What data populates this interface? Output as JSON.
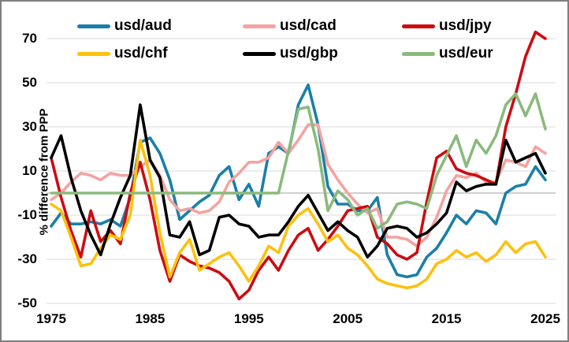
{
  "chart": {
    "y_axis_title": "% difference from PPP",
    "y_ticks": [
      70,
      50,
      30,
      10,
      -10,
      -30,
      -50
    ],
    "x_ticks": [
      1975,
      1985,
      1995,
      2005,
      2015,
      2025
    ],
    "colors": {
      "gridline": "#d9d9d9",
      "zero_line": "#bfbfbf",
      "frame_border": "#7f7f7f",
      "background": "#ffffff"
    }
  },
  "chart_data": {
    "type": "line",
    "title": "",
    "xlabel": "",
    "ylabel": "% difference from PPP",
    "x_range": [
      1975,
      2025
    ],
    "ylim": [
      -50,
      70
    ],
    "grid": "horizontal-only",
    "legend_position": "top",
    "x": [
      1975,
      1976,
      1977,
      1978,
      1979,
      1980,
      1981,
      1982,
      1983,
      1984,
      1985,
      1986,
      1987,
      1988,
      1989,
      1990,
      1991,
      1992,
      1993,
      1994,
      1995,
      1996,
      1997,
      1998,
      1999,
      2000,
      2001,
      2002,
      2003,
      2004,
      2005,
      2006,
      2007,
      2008,
      2009,
      2010,
      2011,
      2012,
      2013,
      2014,
      2015,
      2016,
      2017,
      2018,
      2019,
      2020,
      2021,
      2022,
      2023,
      2024,
      2025
    ],
    "series": [
      {
        "name": "usd/aud",
        "color": "#1b7fa8",
        "values": [
          -15,
          -9,
          -14,
          -14,
          -13,
          -14,
          -12,
          -15,
          -2,
          23,
          25,
          18,
          6,
          -12,
          -8,
          -4,
          -1,
          8,
          12,
          -3,
          4,
          -6,
          18,
          21,
          18,
          40,
          49,
          31,
          3,
          -5,
          -5,
          -8,
          -8,
          -2,
          -28,
          -37,
          -38,
          -37,
          -29,
          -25,
          -18,
          -10,
          -14,
          -8,
          -9,
          -14,
          0,
          3,
          4,
          12,
          6
        ]
      },
      {
        "name": "usd/cad",
        "color": "#f4a3a0",
        "values": [
          -3,
          0,
          5,
          9,
          8,
          6,
          9,
          8,
          8,
          12,
          15,
          8,
          -3,
          -8,
          -7,
          -9,
          -8,
          -4,
          5,
          9,
          14,
          14,
          16,
          23,
          18,
          24,
          31,
          31,
          13,
          6,
          0,
          -5,
          -9,
          -7,
          -20,
          -20,
          -21,
          -24,
          -20,
          -11,
          1,
          8,
          7,
          9,
          5,
          5,
          15,
          14,
          12,
          21,
          18
        ]
      },
      {
        "name": "usd/jpy",
        "color": "#cc0c11",
        "values": [
          16,
          -2,
          -17,
          -29,
          -8,
          -22,
          -17,
          -23,
          0,
          14,
          -3,
          -26,
          -40,
          -28,
          -31,
          -33,
          -34,
          -36,
          -40,
          -48,
          -44,
          -35,
          -29,
          -35,
          -26,
          -19,
          -16,
          -26,
          -21,
          -15,
          -8,
          -7,
          -6,
          -20,
          -23,
          -28,
          -30,
          -27,
          -4,
          16,
          19,
          11,
          9,
          8,
          6,
          4,
          30,
          45,
          62,
          73,
          70
        ]
      },
      {
        "name": "usd/chf",
        "color": "#fdc10d",
        "values": [
          -5,
          -8,
          -20,
          -33,
          -32,
          -25,
          -19,
          -21,
          -10,
          24,
          8,
          -18,
          -38,
          -27,
          -21,
          -35,
          -32,
          -29,
          -27,
          -33,
          -40,
          -33,
          -24,
          -27,
          -15,
          -10,
          -7,
          -14,
          -22,
          -19,
          -25,
          -28,
          -33,
          -39,
          -41,
          -42,
          -43,
          -42,
          -39,
          -32,
          -30,
          -26,
          -29,
          -27,
          -31,
          -28,
          -22,
          -27,
          -23,
          -22,
          -29
        ]
      },
      {
        "name": "usd/gbp",
        "color": "#000000",
        "values": [
          16,
          26,
          7,
          -8,
          -19,
          -28,
          -14,
          -2,
          8,
          40,
          15,
          7,
          -19,
          -20,
          -13,
          -28,
          -26,
          -11,
          -10,
          -14,
          -15,
          -20,
          -19,
          -19,
          -13,
          -6,
          -1,
          -9,
          -17,
          -13,
          -17,
          -20,
          -29,
          -24,
          -16,
          -15,
          -16,
          -20,
          -18,
          -14,
          -9,
          5,
          1,
          3,
          4,
          4,
          24,
          14,
          16,
          18,
          9
        ]
      },
      {
        "name": "usd/eur",
        "color": "#8aba7c",
        "values": [
          0,
          0,
          0,
          0,
          0,
          0,
          0,
          0,
          0,
          0,
          0,
          0,
          0,
          0,
          0,
          0,
          0,
          0,
          0,
          0,
          0,
          0,
          0,
          0,
          19,
          38,
          39,
          20,
          -8,
          1,
          -3,
          -10,
          -7,
          -16,
          -13,
          -5,
          -4,
          -5,
          -7,
          8,
          17,
          26,
          12,
          24,
          18,
          26,
          40,
          45,
          35,
          45,
          29
        ]
      }
    ]
  }
}
